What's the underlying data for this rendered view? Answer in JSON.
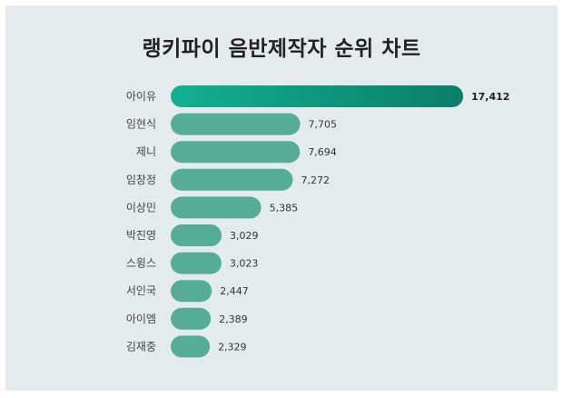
{
  "title": "랭키파이 음반제작자 순위 차트",
  "colors": {
    "background": "#e4ebee",
    "bar": "#55ad98",
    "bar_top_start": "#12b190",
    "bar_top_end": "#0b7e69"
  },
  "chart_data": {
    "type": "bar",
    "orientation": "horizontal",
    "title": "랭키파이 음반제작자 순위 차트",
    "categories": [
      "아이유",
      "임현식",
      "제니",
      "임창정",
      "이상민",
      "박진영",
      "스윙스",
      "서인국",
      "아이엠",
      "김재중"
    ],
    "values": [
      17412,
      7705,
      7694,
      7272,
      5385,
      3029,
      3023,
      2447,
      2389,
      2329
    ],
    "value_labels": [
      "17,412",
      "7,705",
      "7,694",
      "7,272",
      "5,385",
      "3,029",
      "3,023",
      "2,447",
      "2,389",
      "2,329"
    ],
    "xlim": [
      0,
      17412
    ],
    "grid": false,
    "legend": "none"
  }
}
